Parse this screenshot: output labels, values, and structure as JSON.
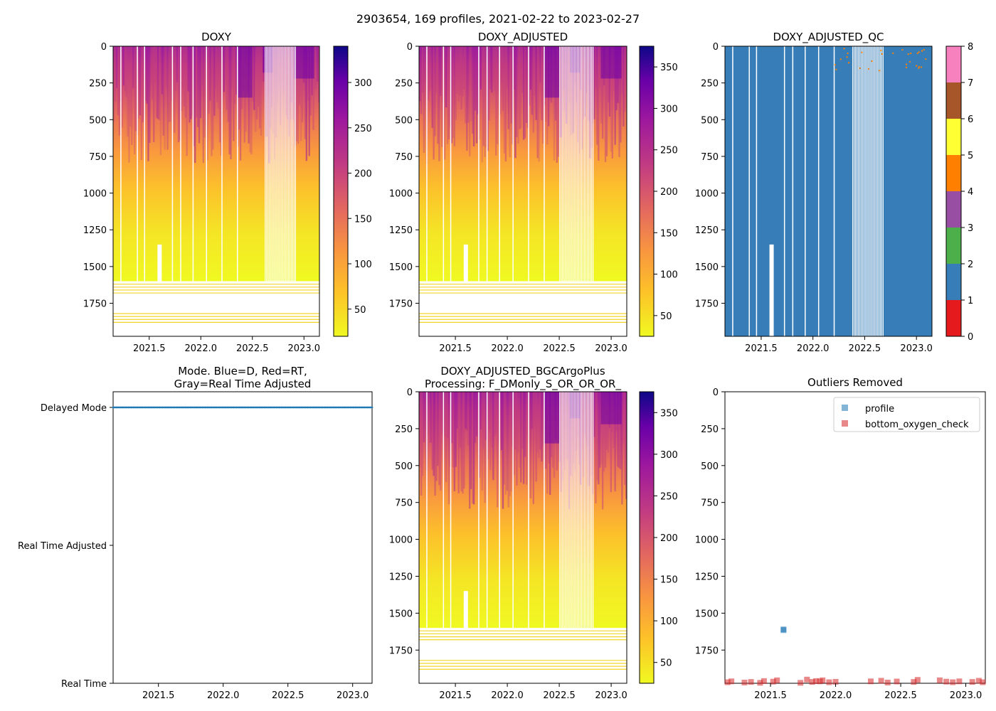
{
  "figure_title": "2903654, 169 profiles, 2021-02-22 to 2023-02-27",
  "chart_data": [
    {
      "id": "doxy",
      "type": "heatmap",
      "title": "DOXY",
      "xlim": [
        2021.15,
        2023.15
      ],
      "ylim": [
        1975,
        0
      ],
      "x_ticks": [
        2021.5,
        2022.0,
        2022.5,
        2023.0
      ],
      "x_tick_labels": [
        "2021.5",
        "2022.0",
        "2022.5",
        "2023.0"
      ],
      "y_ticks": [
        0,
        250,
        500,
        750,
        1000,
        1250,
        1500,
        1750
      ],
      "y_tick_labels": [
        "0",
        "250",
        "500",
        "750",
        "1000",
        "1250",
        "1500",
        "1750"
      ],
      "colormap": "plasma_r",
      "color_range": [
        20,
        340
      ],
      "colorbar_ticks": [
        50,
        100,
        150,
        200,
        250,
        300
      ],
      "colorbar_tick_labels": [
        "50",
        "100",
        "150",
        "200",
        "250",
        "300"
      ]
    },
    {
      "id": "doxy_adj",
      "type": "heatmap",
      "title": "DOXY_ADJUSTED",
      "xlim": [
        2021.15,
        2023.15
      ],
      "ylim": [
        1975,
        0
      ],
      "x_ticks": [
        2021.5,
        2022.0,
        2022.5,
        2023.0
      ],
      "x_tick_labels": [
        "2021.5",
        "2022.0",
        "2022.5",
        "2023.0"
      ],
      "y_ticks": [
        0,
        250,
        500,
        750,
        1000,
        1250,
        1500,
        1750
      ],
      "y_tick_labels": [
        "0",
        "250",
        "500",
        "750",
        "1000",
        "1250",
        "1500",
        "1750"
      ],
      "colormap": "plasma_r",
      "color_range": [
        25,
        375
      ],
      "colorbar_ticks": [
        50,
        100,
        150,
        200,
        250,
        300,
        350
      ],
      "colorbar_tick_labels": [
        "50",
        "100",
        "150",
        "200",
        "250",
        "300",
        "350"
      ]
    },
    {
      "id": "qc",
      "type": "heatmap",
      "title": "DOXY_ADJUSTED_QC",
      "xlim": [
        2021.15,
        2023.15
      ],
      "ylim": [
        1975,
        0
      ],
      "x_ticks": [
        2021.5,
        2022.0,
        2022.5,
        2023.0
      ],
      "x_tick_labels": [
        "2021.5",
        "2022.0",
        "2022.5",
        "2023.0"
      ],
      "y_ticks": [
        0,
        250,
        500,
        750,
        1000,
        1250,
        1500,
        1750
      ],
      "y_tick_labels": [
        "0",
        "250",
        "500",
        "750",
        "1000",
        "1250",
        "1500",
        "1750"
      ],
      "dominant_value": 1,
      "colorbar_ticks": [
        0,
        1,
        2,
        3,
        4,
        5,
        6,
        7,
        8
      ],
      "colorbar_tick_labels": [
        "0",
        "1",
        "2",
        "3",
        "4",
        "5",
        "6",
        "7",
        "8"
      ],
      "qc_colors": [
        "#e41a1c",
        "#377eb8",
        "#4daf4a",
        "#984ea3",
        "#ff7f00",
        "#ffff33",
        "#a65628",
        "#f781bf",
        "#999999"
      ]
    },
    {
      "id": "mode",
      "type": "scatter",
      "title_lines": [
        "Mode. Blue=D, Red=RT,",
        "Gray=Real Time Adjusted"
      ],
      "xlim": [
        2021.15,
        2023.15
      ],
      "x_ticks": [
        2021.5,
        2022.0,
        2022.5,
        2023.0
      ],
      "x_tick_labels": [
        "2021.5",
        "2022.0",
        "2022.5",
        "2023.0"
      ],
      "y_categories": [
        "Real Time",
        "Real Time Adjusted",
        "Delayed Mode"
      ],
      "series": [
        {
          "name": "D",
          "color": "#1f77b4",
          "category": "Delayed Mode",
          "x_range": [
            2021.15,
            2023.15
          ],
          "count": 169
        }
      ]
    },
    {
      "id": "doxy_bgc",
      "type": "heatmap",
      "title_lines": [
        "DOXY_ADJUSTED_BGCArgoPlus",
        "Processing: F_DMonly_S_OR_OR_OR_"
      ],
      "xlim": [
        2021.15,
        2023.15
      ],
      "ylim": [
        1975,
        0
      ],
      "x_ticks": [
        2021.5,
        2022.0,
        2022.5,
        2023.0
      ],
      "x_tick_labels": [
        "2021.5",
        "2022.0",
        "2022.5",
        "2023.0"
      ],
      "y_ticks": [
        0,
        250,
        500,
        750,
        1000,
        1250,
        1500,
        1750
      ],
      "y_tick_labels": [
        "0",
        "250",
        "500",
        "750",
        "1000",
        "1250",
        "1500",
        "1750"
      ],
      "colormap": "plasma_r",
      "color_range": [
        25,
        375
      ],
      "colorbar_ticks": [
        50,
        100,
        150,
        200,
        250,
        300,
        350
      ],
      "colorbar_tick_labels": [
        "50",
        "100",
        "150",
        "200",
        "250",
        "300",
        "350"
      ]
    },
    {
      "id": "outliers",
      "type": "scatter",
      "title": "Outliers Removed",
      "xlim": [
        2021.15,
        2023.15
      ],
      "ylim": [
        1975,
        0
      ],
      "x_ticks": [
        2021.5,
        2022.0,
        2022.5,
        2023.0
      ],
      "x_tick_labels": [
        "2021.5",
        "2022.0",
        "2022.5",
        "2023.0"
      ],
      "y_ticks": [
        0,
        250,
        500,
        750,
        1000,
        1250,
        1500,
        1750
      ],
      "y_tick_labels": [
        "0",
        "250",
        "500",
        "750",
        "1000",
        "1250",
        "1500",
        "1750"
      ],
      "legend_position": "top-right",
      "series": [
        {
          "name": "profile",
          "color": "#1f77b4",
          "points": [
            [
              2021.6,
              1610
            ],
            [
              2021.6,
              1615
            ]
          ]
        },
        {
          "name": "bottom_oxygen_check",
          "color": "#d62728",
          "points": [
            [
              2021.17,
              1968
            ],
            [
              2021.2,
              1962
            ],
            [
              2021.3,
              1970
            ],
            [
              2021.35,
              1966
            ],
            [
              2021.42,
              1972
            ],
            [
              2021.45,
              1960
            ],
            [
              2021.52,
              1964
            ],
            [
              2021.55,
              1955
            ],
            [
              2021.73,
              1972
            ],
            [
              2021.78,
              1950
            ],
            [
              2021.82,
              1966
            ],
            [
              2021.85,
              1960
            ],
            [
              2021.88,
              1962
            ],
            [
              2021.9,
              1955
            ],
            [
              2021.95,
              1968
            ],
            [
              2022.0,
              1965
            ],
            [
              2022.27,
              1962
            ],
            [
              2022.35,
              1958
            ],
            [
              2022.4,
              1970
            ],
            [
              2022.47,
              1963
            ],
            [
              2022.6,
              1966
            ],
            [
              2022.63,
              1952
            ],
            [
              2022.8,
              1955
            ],
            [
              2022.85,
              1964
            ],
            [
              2022.9,
              1968
            ],
            [
              2022.95,
              1962
            ],
            [
              2023.05,
              1966
            ],
            [
              2023.1,
              1958
            ],
            [
              2023.13,
              1968
            ]
          ]
        }
      ]
    }
  ]
}
